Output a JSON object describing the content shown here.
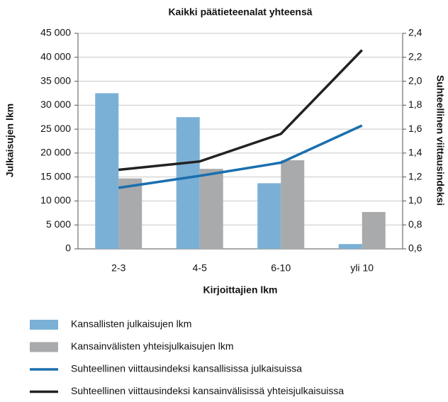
{
  "chart_data": {
    "type": "bar_line",
    "title": "Kaikki päätieteenalat yhteensä",
    "xlabel": "Kirjoittajien lkm",
    "ylabel": "Julkaisujen lkm",
    "y2label": "Suhteellinen viittausindeksi",
    "categories": [
      "2-3",
      "4-5",
      "6-10",
      "yli 10"
    ],
    "series": [
      {
        "name": "Kansallisten julkaisujen lkm",
        "type": "bar",
        "color": "#7ab0d6",
        "values": [
          32500,
          27500,
          13700,
          1000
        ]
      },
      {
        "name": "Kansainvälisten yhteisjulkaisujen lkm",
        "type": "bar",
        "color": "#a9aaac",
        "values": [
          14700,
          16700,
          18500,
          7700
        ]
      },
      {
        "name": "Suhteellinen viittausindeksi kansallisissa julkaisuissa",
        "type": "line",
        "axis": "y2",
        "color": "#1a6fae",
        "values": [
          1.11,
          1.21,
          1.32,
          1.63
        ]
      },
      {
        "name": "Suhteellinen viittausindeksi kansainvälisissä yhteisjulkaisuissa",
        "type": "line",
        "axis": "y2",
        "color": "#222222",
        "values": [
          1.26,
          1.33,
          1.56,
          2.26
        ]
      }
    ],
    "ylim": [
      0,
      45000
    ],
    "yticks": [
      0,
      {
        "value": 5000,
        "label": "5 000"
      },
      {
        "value": 10000,
        "label": "10 000"
      },
      {
        "value": 15000,
        "label": "15 000"
      },
      {
        "value": 20000,
        "label": "20 000"
      },
      {
        "value": 25000,
        "label": "25 000"
      },
      {
        "value": 30000,
        "label": "30 000"
      },
      {
        "value": 35000,
        "label": "35 000"
      },
      {
        "value": 40000,
        "label": "40 000"
      },
      {
        "value": 45000,
        "label": "45 000"
      }
    ],
    "y2lim": [
      0.6,
      2.4
    ],
    "y2ticks": [
      {
        "value": 0.6,
        "label": "0,6"
      },
      {
        "value": 0.8,
        "label": "0,8"
      },
      {
        "value": 1.0,
        "label": "1,0"
      },
      {
        "value": 1.2,
        "label": "1,2"
      },
      {
        "value": 1.4,
        "label": "1,4"
      },
      {
        "value": 1.6,
        "label": "1,6"
      },
      {
        "value": 1.8,
        "label": "1,8"
      },
      {
        "value": 2.0,
        "label": "2,0"
      },
      {
        "value": 2.2,
        "label": "2,2"
      },
      {
        "value": 2.4,
        "label": "2,4"
      }
    ],
    "grid": true,
    "legend": "bottom"
  }
}
